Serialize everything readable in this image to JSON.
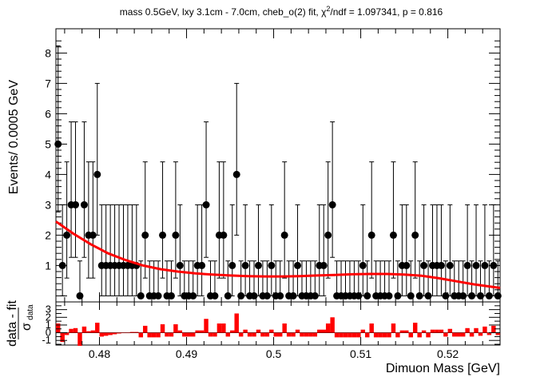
{
  "title": "mass 0.5GeV, lxy 3.1cm - 7.0cm, cheb_o(2) fit, χ²/ndf = 1.097341, p = 0.816",
  "chart_data": [
    {
      "type": "scatter",
      "title": "mass 0.5GeV, lxy 3.1cm - 7.0cm, cheb_o(2) fit, χ²/ndf = 1.097341, p = 0.816",
      "xlabel": "Dimuon Mass [GeV]",
      "ylabel": "Events/ 0.0005 GeV",
      "xlim": [
        0.475,
        0.526
      ],
      "ylim": [
        -0.2,
        8.8
      ],
      "xticks": [
        "0.48",
        "0.49",
        "0.5",
        "0.51",
        "0.52"
      ],
      "yticks": [
        "1",
        "2",
        "3",
        "4",
        "5",
        "6",
        "7",
        "8"
      ],
      "grid": false,
      "colors": {
        "data": "#000000",
        "fit": "#ff0000"
      },
      "x": [
        0.47525,
        0.47575,
        0.47625,
        0.47675,
        0.47725,
        0.47775,
        0.47825,
        0.47875,
        0.47925,
        0.47975,
        0.48025,
        0.48075,
        0.48125,
        0.48175,
        0.48225,
        0.48275,
        0.48325,
        0.48375,
        0.48425,
        0.48475,
        0.48525,
        0.48575,
        0.48625,
        0.48675,
        0.48725,
        0.48775,
        0.48825,
        0.48875,
        0.48925,
        0.48975,
        0.49025,
        0.49075,
        0.49125,
        0.49175,
        0.49225,
        0.49275,
        0.49325,
        0.49375,
        0.49425,
        0.49475,
        0.49525,
        0.49575,
        0.49625,
        0.49675,
        0.49725,
        0.49775,
        0.49825,
        0.49875,
        0.49925,
        0.49975,
        0.50025,
        0.50075,
        0.50125,
        0.50175,
        0.50225,
        0.50275,
        0.50325,
        0.50375,
        0.50425,
        0.50475,
        0.50525,
        0.50575,
        0.50625,
        0.50675,
        0.50725,
        0.50775,
        0.50825,
        0.50875,
        0.50925,
        0.50975,
        0.51025,
        0.51075,
        0.51125,
        0.51175,
        0.51225,
        0.51275,
        0.51325,
        0.51375,
        0.51425,
        0.51475,
        0.51525,
        0.51575,
        0.51625,
        0.51675,
        0.51725,
        0.51775,
        0.51825,
        0.51875,
        0.51925,
        0.51975,
        0.52025,
        0.52075,
        0.52125,
        0.52175,
        0.52225,
        0.52275,
        0.52325,
        0.52375,
        0.52425,
        0.52475,
        0.52525,
        0.52575
      ],
      "y": [
        5,
        1,
        2,
        3,
        3,
        0,
        3,
        2,
        2,
        4,
        1,
        1,
        1,
        1,
        1,
        1,
        1,
        1,
        1,
        0,
        2,
        0,
        0,
        0,
        2,
        0,
        0,
        2,
        1,
        0,
        0,
        0,
        1,
        1,
        3,
        0,
        0,
        2,
        2,
        0,
        1,
        4,
        0,
        1,
        0,
        0,
        1,
        0,
        0,
        1,
        0,
        0,
        2,
        0,
        0,
        1,
        0,
        0,
        0,
        0,
        1,
        1,
        2,
        3,
        0,
        0,
        0,
        0,
        0,
        0,
        1,
        0,
        2,
        0,
        0,
        0,
        0,
        2,
        0,
        1,
        1,
        0,
        2,
        0,
        1,
        0,
        1,
        1,
        1,
        0,
        1,
        0,
        0,
        0,
        1,
        0,
        1,
        0,
        1,
        0,
        1,
        0
      ],
      "fit_x": [
        0.475,
        0.477,
        0.479,
        0.481,
        0.483,
        0.485,
        0.487,
        0.489,
        0.491,
        0.493,
        0.495,
        0.497,
        0.499,
        0.501,
        0.503,
        0.505,
        0.507,
        0.509,
        0.511,
        0.513,
        0.515,
        0.517,
        0.519,
        0.521,
        0.523,
        0.526
      ],
      "fit_y": [
        2.45,
        2.05,
        1.7,
        1.4,
        1.18,
        1.0,
        0.88,
        0.8,
        0.74,
        0.7,
        0.67,
        0.65,
        0.64,
        0.64,
        0.65,
        0.67,
        0.69,
        0.71,
        0.72,
        0.72,
        0.7,
        0.66,
        0.58,
        0.48,
        0.38,
        0.26
      ]
    },
    {
      "type": "bar",
      "title": "",
      "xlabel": "Dimuon Mass [GeV]",
      "ylabel": "data - fit / σdata",
      "ylabel_num": "data - fit",
      "ylabel_den": "σ",
      "ylabel_sub": "data",
      "xlim": [
        0.475,
        0.526
      ],
      "ylim": [
        -1.6,
        4.0
      ],
      "yticks": [
        "-1",
        "0",
        "1",
        "2",
        "3"
      ],
      "x": [
        0.47525,
        0.47575,
        0.47625,
        0.47675,
        0.47725,
        0.47775,
        0.47825,
        0.47875,
        0.47925,
        0.47975,
        0.48025,
        0.48075,
        0.48125,
        0.48175,
        0.48225,
        0.48275,
        0.48325,
        0.48375,
        0.48425,
        0.48475,
        0.48525,
        0.48575,
        0.48625,
        0.48675,
        0.48725,
        0.48775,
        0.48825,
        0.48875,
        0.48925,
        0.48975,
        0.49025,
        0.49075,
        0.49125,
        0.49175,
        0.49225,
        0.49275,
        0.49325,
        0.49375,
        0.49425,
        0.49475,
        0.49525,
        0.49575,
        0.49625,
        0.49675,
        0.49725,
        0.49775,
        0.49825,
        0.49875,
        0.49925,
        0.49975,
        0.50025,
        0.50075,
        0.50125,
        0.50175,
        0.50225,
        0.50275,
        0.50325,
        0.50375,
        0.50425,
        0.50475,
        0.50525,
        0.50575,
        0.50625,
        0.50675,
        0.50725,
        0.50775,
        0.50825,
        0.50875,
        0.50925,
        0.50975,
        0.51025,
        0.51075,
        0.51125,
        0.51175,
        0.51225,
        0.51275,
        0.51325,
        0.51375,
        0.51425,
        0.51475,
        0.51525,
        0.51575,
        0.51625,
        0.51675,
        0.51725,
        0.51775,
        0.51825,
        0.51875,
        0.51925,
        0.51975,
        0.52025,
        0.52075,
        0.52125,
        0.52175,
        0.52225,
        0.52275,
        0.52325,
        0.52375,
        0.52425,
        0.52475,
        0.52525,
        0.52575
      ],
      "values": [
        1.2,
        -1.2,
        -0.3,
        0.5,
        0.6,
        -1.7,
        0.8,
        0.2,
        0.3,
        1.3,
        -0.5,
        -0.4,
        -0.3,
        -0.2,
        -0.1,
        0.0,
        0.0,
        0.1,
        0.1,
        -0.6,
        0.9,
        -0.6,
        -0.6,
        -0.6,
        1.1,
        -0.5,
        -0.5,
        1.1,
        0.3,
        -0.5,
        -0.5,
        -0.5,
        0.3,
        0.3,
        1.8,
        -0.5,
        -0.5,
        1.2,
        1.2,
        -0.5,
        0.3,
        2.5,
        -0.5,
        0.4,
        -0.5,
        -0.5,
        0.4,
        -0.5,
        -0.5,
        0.4,
        -0.5,
        -0.5,
        1.2,
        -0.5,
        -0.5,
        0.4,
        -0.5,
        -0.5,
        -0.5,
        -0.5,
        0.4,
        0.4,
        1.2,
        2.0,
        -0.6,
        -0.6,
        -0.6,
        -0.6,
        -0.6,
        -0.6,
        0.4,
        -0.6,
        1.2,
        -0.6,
        -0.6,
        -0.6,
        -0.6,
        1.2,
        -0.6,
        0.3,
        0.3,
        -0.6,
        1.3,
        -0.6,
        0.3,
        -0.6,
        0.4,
        0.4,
        0.4,
        -0.5,
        0.5,
        -0.5,
        -0.5,
        -0.5,
        0.6,
        -0.5,
        0.6,
        -0.4,
        0.8,
        -0.3,
        0.9,
        -0.3
      ],
      "color": "#ff0000"
    }
  ]
}
